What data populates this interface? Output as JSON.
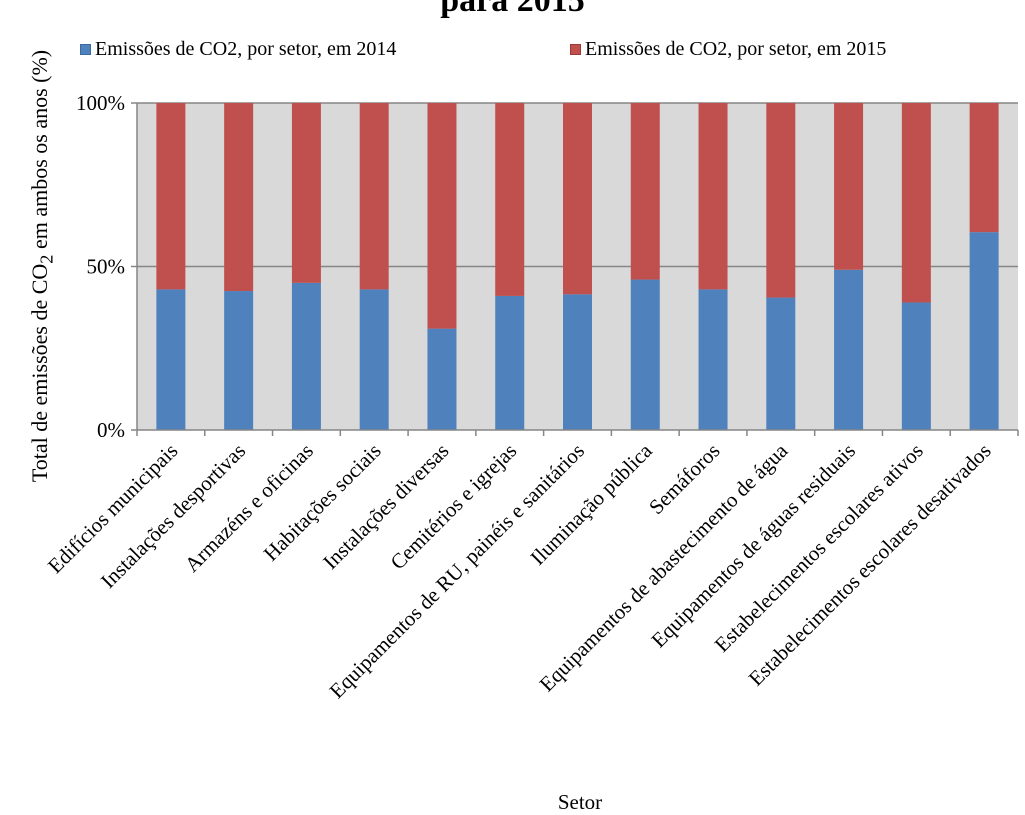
{
  "chart_data": {
    "type": "bar",
    "stacked": true,
    "percent": true,
    "title": "",
    "title_partial": "para 2015",
    "xlabel": "Setor",
    "ylabel": "Total de emissões de CO2 em ambos os anos (%)",
    "ylabel_parts": {
      "before": "Total de emissões de CO",
      "subscript": "2",
      "after": " em ambos os anos (%)"
    },
    "ylim": [
      0,
      100
    ],
    "yticks": [
      "0%",
      "50%",
      "100%"
    ],
    "grid": true,
    "legend_position": "top",
    "categories": [
      "Edifícios municipais",
      "Instalações desportivas",
      "Armazéns e oficinas",
      "Habitações sociais",
      "Instalações diversas",
      "Cemitérios e igrejas",
      "Equipamentos de RU, painéis e sanitários",
      "Iluminação pública",
      "Semáforos",
      "Equipamentos de abastecimento de água",
      "Equipamentos de águas residuais",
      "Estabelecimentos escolares ativos",
      "Estabelecimentos escolares desativados"
    ],
    "series": [
      {
        "name": "Emissões de CO2, por setor, em 2014",
        "color": "#4f81bd",
        "values": [
          43,
          42.5,
          45,
          43,
          31,
          41,
          41.5,
          46,
          43,
          40.5,
          49,
          39,
          60.5
        ]
      },
      {
        "name": "Emissões de CO2, por setor, em 2015",
        "color": "#c0504d",
        "values": [
          57,
          57.5,
          55,
          57,
          69,
          59,
          58.5,
          54,
          57,
          59.5,
          51,
          61,
          39.5
        ]
      }
    ],
    "colors": {
      "plot_background": "#d9d9d9",
      "gridline": "#868686",
      "axis": "#868686",
      "border": "#000000"
    }
  }
}
